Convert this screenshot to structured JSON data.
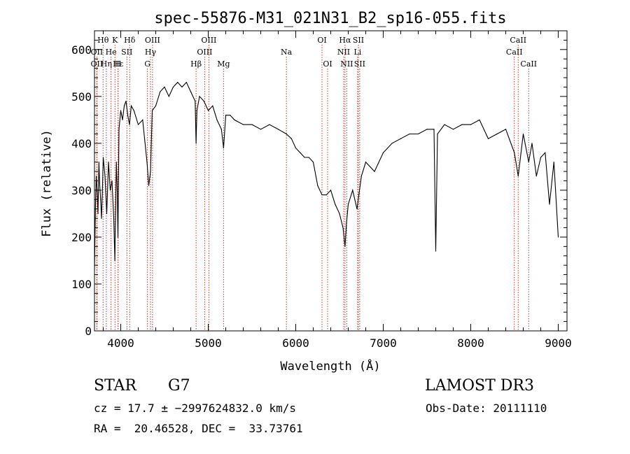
{
  "chart_data": {
    "type": "line",
    "title": "spec-55876-M31_021N31_B2_sp16-055.fits",
    "xlabel": "Wavelength (Å)",
    "ylabel": "Flux (relative)",
    "xlim": [
      3700,
      9100
    ],
    "ylim": [
      0,
      640
    ],
    "xticks": [
      4000,
      5000,
      6000,
      7000,
      8000,
      9000
    ],
    "yticks": [
      0,
      100,
      200,
      300,
      400,
      500,
      600
    ],
    "grid": false,
    "line_markers": [
      {
        "label": "Hθ",
        "wavelength": 3798,
        "row": 0
      },
      {
        "label": "K",
        "wavelength": 3934,
        "row": 0
      },
      {
        "label": "Hδ",
        "wavelength": 4102,
        "row": 0
      },
      {
        "label": "OIII",
        "wavelength": 4363,
        "row": 0
      },
      {
        "label": "OIII",
        "wavelength": 5007,
        "row": 0
      },
      {
        "label": "OI",
        "wavelength": 6300,
        "row": 0
      },
      {
        "label": "Hα",
        "wavelength": 6563,
        "row": 0
      },
      {
        "label": "SII",
        "wavelength": 6716,
        "row": 0
      },
      {
        "label": "CaII",
        "wavelength": 8542,
        "row": 0
      },
      {
        "label": "OII",
        "wavelength": 3727,
        "row": 1
      },
      {
        "label": "He",
        "wavelength": 3889,
        "row": 1
      },
      {
        "label": "SII",
        "wavelength": 4070,
        "row": 1
      },
      {
        "label": "Hγ",
        "wavelength": 4340,
        "row": 1
      },
      {
        "label": "OIII",
        "wavelength": 4959,
        "row": 1
      },
      {
        "label": "Na",
        "wavelength": 5893,
        "row": 1
      },
      {
        "label": "NII",
        "wavelength": 6548,
        "row": 1
      },
      {
        "label": "Li",
        "wavelength": 6707,
        "row": 1
      },
      {
        "label": "CaII",
        "wavelength": 8498,
        "row": 1
      },
      {
        "label": "OII",
        "wavelength": 3727,
        "row": 2
      },
      {
        "label": "Hε",
        "wavelength": 3970,
        "row": 2
      },
      {
        "label": "Hη",
        "wavelength": 3835,
        "row": 2
      },
      {
        "label": "H",
        "wavelength": 3968,
        "row": 2
      },
      {
        "label": "G",
        "wavelength": 4305,
        "row": 2
      },
      {
        "label": "Hβ",
        "wavelength": 4861,
        "row": 2
      },
      {
        "label": "Mg",
        "wavelength": 5175,
        "row": 2
      },
      {
        "label": "OI",
        "wavelength": 6364,
        "row": 2
      },
      {
        "label": "NII",
        "wavelength": 6583,
        "row": 2
      },
      {
        "label": "SII",
        "wavelength": 6731,
        "row": 2
      },
      {
        "label": "CaII",
        "wavelength": 8662,
        "row": 2
      }
    ],
    "series": [
      {
        "x": [
          3700,
          3710,
          3720,
          3730,
          3740,
          3750,
          3760,
          3770,
          3780,
          3790,
          3800,
          3820,
          3840,
          3860,
          3880,
          3900,
          3920,
          3933,
          3940,
          3950,
          3960,
          3968,
          3980,
          4000,
          4020,
          4040,
          4060,
          4080,
          4100,
          4120,
          4150,
          4200,
          4250,
          4300,
          4320,
          4340,
          4360,
          4400,
          4450,
          4500,
          4550,
          4600,
          4650,
          4700,
          4750,
          4800,
          4850,
          4861,
          4870,
          4900,
          4950,
          5000,
          5050,
          5100,
          5150,
          5175,
          5200,
          5250,
          5300,
          5400,
          5500,
          5600,
          5700,
          5800,
          5893,
          5950,
          6000,
          6050,
          6100,
          6150,
          6200,
          6250,
          6300,
          6350,
          6400,
          6450,
          6500,
          6540,
          6563,
          6580,
          6600,
          6650,
          6700,
          6750,
          6800,
          6900,
          7000,
          7100,
          7200,
          7300,
          7400,
          7500,
          7580,
          7600,
          7620,
          7700,
          7800,
          7900,
          8000,
          8100,
          8200,
          8300,
          8400,
          8498,
          8542,
          8600,
          8662,
          8700,
          8750,
          8800,
          8850,
          8900,
          8950,
          9000
        ],
        "y": [
          130,
          260,
          330,
          300,
          250,
          360,
          310,
          280,
          240,
          300,
          370,
          330,
          250,
          360,
          300,
          320,
          240,
          150,
          250,
          360,
          300,
          200,
          430,
          470,
          450,
          480,
          490,
          460,
          440,
          480,
          470,
          440,
          450,
          360,
          310,
          340,
          470,
          480,
          510,
          520,
          500,
          520,
          530,
          520,
          530,
          510,
          490,
          400,
          470,
          500,
          490,
          470,
          480,
          450,
          430,
          390,
          460,
          460,
          450,
          440,
          440,
          430,
          440,
          430,
          420,
          410,
          390,
          380,
          370,
          370,
          360,
          310,
          290,
          290,
          300,
          270,
          250,
          220,
          180,
          230,
          270,
          300,
          260,
          330,
          360,
          340,
          380,
          400,
          410,
          420,
          420,
          430,
          430,
          170,
          420,
          440,
          430,
          440,
          440,
          450,
          410,
          420,
          430,
          380,
          330,
          420,
          360,
          400,
          330,
          370,
          380,
          270,
          360,
          200
        ]
      }
    ]
  },
  "info": {
    "object_type": "STAR",
    "subclass": "G7",
    "survey": "LAMOST DR3",
    "cz": "cz = 17.7 ± −2997624832.0 km/s",
    "obs_date": "Obs-Date: 20111110",
    "coords": "RA =  20.46528, DEC =  33.73761"
  }
}
